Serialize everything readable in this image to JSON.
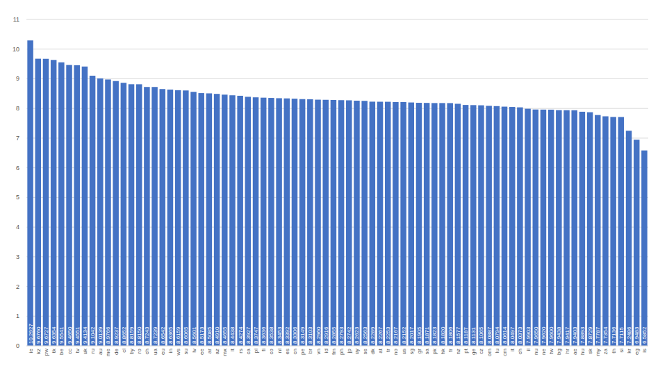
{
  "chart_data": {
    "type": "bar",
    "categories": [
      "ie",
      "kz",
      "pw",
      "tk",
      "be",
      "cc",
      "tv",
      "uk",
      "ru",
      "au",
      "me",
      "de",
      "cl",
      "by",
      "ro",
      "ch",
      "ua",
      "eu",
      "in",
      "ws",
      "su",
      "lv",
      "ee",
      "ar",
      "az",
      "mx",
      "lt",
      "rs",
      "ca",
      "pl",
      "fi",
      "co",
      "nl",
      "es",
      "cn",
      "pe",
      "br",
      "vn",
      "id",
      "fm",
      "ph",
      "jp",
      "uy",
      "se",
      "dk",
      "at",
      "tr",
      "no",
      "us",
      "sg",
      "gr",
      "sa",
      "pk",
      "hk",
      "fr",
      "nz",
      "pt",
      "ge",
      "cz",
      "om",
      "lu",
      "cm",
      "it",
      "ch",
      "il",
      "nu",
      "ne",
      "tw",
      "bg",
      "hr",
      "ae",
      "hu",
      "sk",
      "my",
      "za",
      "th",
      "si",
      "kr",
      "eg",
      "is"
    ],
    "values": [
      10.2927,
      9.676,
      9.6727,
      9.6354,
      9.5541,
      9.465,
      9.4551,
      9.4134,
      9.1042,
      9.0139,
      8.9766,
      8.9237,
      8.8652,
      8.8159,
      8.815,
      8.7243,
      8.7239,
      8.6542,
      8.6365,
      8.6159,
      8.6065,
      8.5601,
      8.5173,
      8.5085,
      8.491,
      8.4655,
      8.4438,
      8.4274,
      8.3927,
      8.3747,
      8.3636,
      8.3538,
      8.3453,
      8.3392,
      8.3306,
      8.3149,
      8.3103,
      8.296,
      8.2916,
      8.2855,
      8.2793,
      8.2742,
      8.2623,
      8.2563,
      8.2289,
      8.2267,
      8.2253,
      8.2167,
      8.2152,
      8.2017,
      8.1905,
      8.1871,
      8.1823,
      8.182,
      8.1806,
      8.1577,
      8.1187,
      8.1131,
      8.1065,
      8.0887,
      8.0794,
      8.0614,
      8.0497,
      8.0373,
      7.9903,
      7.965,
      7.962,
      7.96,
      7.9438,
      7.9417,
      7.9403,
      7.8893,
      7.8729,
      7.7787,
      7.7354,
      7.7136,
      7.7115,
      7.2486,
      6.9483,
      6.5852
    ],
    "value_labels": [
      "10.2927",
      "9.6760",
      "9.6727",
      "9.6354",
      "9.5541",
      "9.4650",
      "9.4551",
      "9.4134",
      "9.1042",
      "9.0139",
      "8.9766",
      "8.9237",
      "8.8652",
      "8.8159",
      "8.8150",
      "8.7243",
      "8.7239",
      "8.6542",
      "8.6365",
      "8.6159",
      "8.6065",
      "8.5601",
      "8.5173",
      "8.5085",
      "8.4910",
      "8.4655",
      "8.4438",
      "8.4274",
      "8.3927",
      "8.3747",
      "8.3636",
      "8.3538",
      "8.3453",
      "8.3392",
      "8.3306",
      "8.3149",
      "8.3103",
      "8.2960",
      "8.2916",
      "8.2855",
      "8.2793",
      "8.2742",
      "8.2623",
      "8.2563",
      "8.2289",
      "8.2267",
      "8.2253",
      "8.2167",
      "8.2152",
      "8.2017",
      "8.1905",
      "8.1871",
      "8.1823",
      "8.1820",
      "8.1806",
      "8.1577",
      "8.1187",
      "8.1131",
      "8.1065",
      "8.0887",
      "8.0794",
      "8.0614",
      "8.0497",
      "8.0373",
      "7.9903",
      "7.9650",
      "7.9620",
      "7.9600",
      "7.9438",
      "7.9417",
      "7.9403",
      "7.8893",
      "7.8729",
      "7.7787",
      "7.7354",
      "7.7136",
      "7.7115",
      "7.2486",
      "6.9483",
      "6.5852"
    ],
    "color": "#4472c4",
    "ylim": [
      0,
      11
    ],
    "yticks": [
      0,
      1,
      2,
      3,
      4,
      5,
      6,
      7,
      8,
      9,
      10,
      11
    ],
    "grid": true,
    "data_labels": true
  }
}
